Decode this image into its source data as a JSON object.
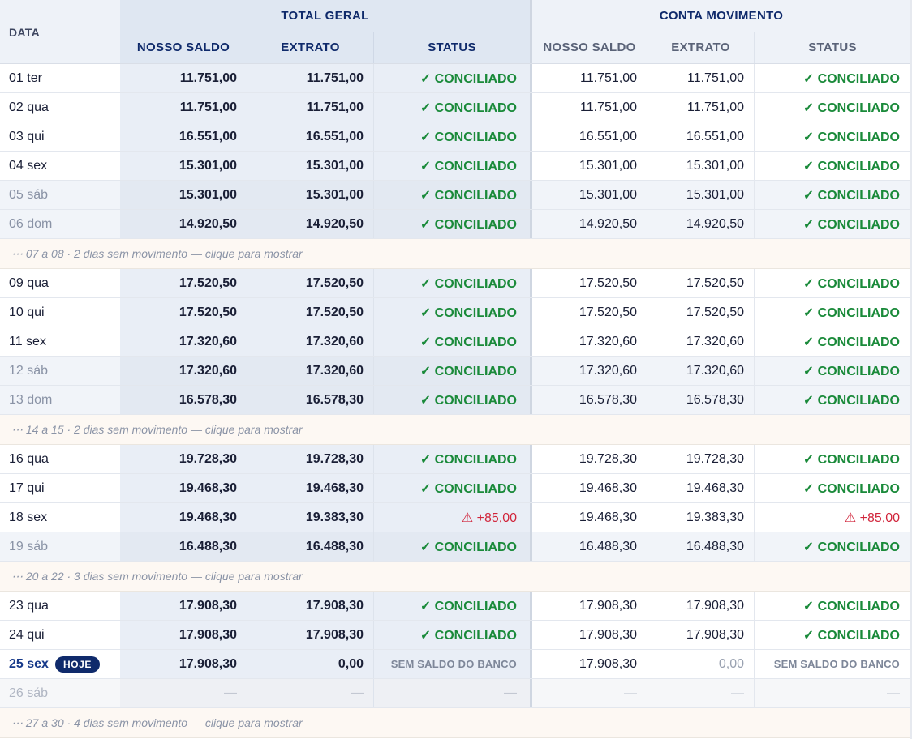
{
  "header": {
    "data_label": "DATA",
    "group_total": "TOTAL GERAL",
    "group_conta": "CONTA MOVIMENTO",
    "columns": {
      "total_nosso": "NOSSO SALDO",
      "total_extrato": "EXTRATO",
      "total_status": "STATUS",
      "conta_nosso": "NOSSO SALDO",
      "conta_extrato": "EXTRATO",
      "conta_status": "STATUS"
    }
  },
  "rows": {
    "r01": {
      "date": "01 ter",
      "t_nosso": "11.751,00",
      "t_extrato": "11.751,00",
      "t_status": "✓ CONCILIADO",
      "c_nosso": "11.751,00",
      "c_extrato": "11.751,00",
      "c_status": "✓ CONCILIADO"
    },
    "r02": {
      "date": "02 qua",
      "t_nosso": "11.751,00",
      "t_extrato": "11.751,00",
      "t_status": "✓ CONCILIADO",
      "c_nosso": "11.751,00",
      "c_extrato": "11.751,00",
      "c_status": "✓ CONCILIADO"
    },
    "r03": {
      "date": "03 qui",
      "t_nosso": "16.551,00",
      "t_extrato": "16.551,00",
      "t_status": "✓ CONCILIADO",
      "c_nosso": "16.551,00",
      "c_extrato": "16.551,00",
      "c_status": "✓ CONCILIADO"
    },
    "r04": {
      "date": "04 sex",
      "t_nosso": "15.301,00",
      "t_extrato": "15.301,00",
      "t_status": "✓ CONCILIADO",
      "c_nosso": "15.301,00",
      "c_extrato": "15.301,00",
      "c_status": "✓ CONCILIADO"
    },
    "r05": {
      "date": "05 sáb",
      "t_nosso": "15.301,00",
      "t_extrato": "15.301,00",
      "t_status": "✓ CONCILIADO",
      "c_nosso": "15.301,00",
      "c_extrato": "15.301,00",
      "c_status": "✓ CONCILIADO"
    },
    "r06": {
      "date": "06 dom",
      "t_nosso": "14.920,50",
      "t_extrato": "14.920,50",
      "t_status": "✓ CONCILIADO",
      "c_nosso": "14.920,50",
      "c_extrato": "14.920,50",
      "c_status": "✓ CONCILIADO"
    },
    "r09": {
      "date": "09 qua",
      "t_nosso": "17.520,50",
      "t_extrato": "17.520,50",
      "t_status": "✓ CONCILIADO",
      "c_nosso": "17.520,50",
      "c_extrato": "17.520,50",
      "c_status": "✓ CONCILIADO"
    },
    "r10": {
      "date": "10 qui",
      "t_nosso": "17.520,50",
      "t_extrato": "17.520,50",
      "t_status": "✓ CONCILIADO",
      "c_nosso": "17.520,50",
      "c_extrato": "17.520,50",
      "c_status": "✓ CONCILIADO"
    },
    "r11": {
      "date": "11 sex",
      "t_nosso": "17.320,60",
      "t_extrato": "17.320,60",
      "t_status": "✓ CONCILIADO",
      "c_nosso": "17.320,60",
      "c_extrato": "17.320,60",
      "c_status": "✓ CONCILIADO"
    },
    "r12": {
      "date": "12 sáb",
      "t_nosso": "17.320,60",
      "t_extrato": "17.320,60",
      "t_status": "✓ CONCILIADO",
      "c_nosso": "17.320,60",
      "c_extrato": "17.320,60",
      "c_status": "✓ CONCILIADO"
    },
    "r13": {
      "date": "13 dom",
      "t_nosso": "16.578,30",
      "t_extrato": "16.578,30",
      "t_status": "✓ CONCILIADO",
      "c_nosso": "16.578,30",
      "c_extrato": "16.578,30",
      "c_status": "✓ CONCILIADO"
    },
    "r16": {
      "date": "16 qua",
      "t_nosso": "19.728,30",
      "t_extrato": "19.728,30",
      "t_status": "✓ CONCILIADO",
      "c_nosso": "19.728,30",
      "c_extrato": "19.728,30",
      "c_status": "✓ CONCILIADO"
    },
    "r17": {
      "date": "17 qui",
      "t_nosso": "19.468,30",
      "t_extrato": "19.468,30",
      "t_status": "✓ CONCILIADO",
      "c_nosso": "19.468,30",
      "c_extrato": "19.468,30",
      "c_status": "✓ CONCILIADO"
    },
    "r18": {
      "date": "18 sex",
      "t_nosso": "19.468,30",
      "t_extrato": "19.383,30",
      "t_status": "⚠ +85,00",
      "c_nosso": "19.468,30",
      "c_extrato": "19.383,30",
      "c_status": "⚠ +85,00"
    },
    "r19": {
      "date": "19 sáb",
      "t_nosso": "16.488,30",
      "t_extrato": "16.488,30",
      "t_status": "✓ CONCILIADO",
      "c_nosso": "16.488,30",
      "c_extrato": "16.488,30",
      "c_status": "✓ CONCILIADO"
    },
    "r23": {
      "date": "23 qua",
      "t_nosso": "17.908,30",
      "t_extrato": "17.908,30",
      "t_status": "✓ CONCILIADO",
      "c_nosso": "17.908,30",
      "c_extrato": "17.908,30",
      "c_status": "✓ CONCILIADO"
    },
    "r24": {
      "date": "24 qui",
      "t_nosso": "17.908,30",
      "t_extrato": "17.908,30",
      "t_status": "✓ CONCILIADO",
      "c_nosso": "17.908,30",
      "c_extrato": "17.908,30",
      "c_status": "✓ CONCILIADO"
    },
    "r25": {
      "date": "25 sex",
      "today_badge": "HOJE",
      "t_nosso": "17.908,30",
      "t_extrato": "0,00",
      "t_status": "SEM SALDO DO BANCO",
      "c_nosso": "17.908,30",
      "c_extrato": "0,00",
      "c_status": "SEM SALDO DO BANCO"
    },
    "r26": {
      "date": "26 sáb",
      "t_nosso": "—",
      "t_extrato": "—",
      "t_status": "—",
      "c_nosso": "—",
      "c_extrato": "—",
      "c_status": "—"
    }
  },
  "gaps": {
    "g1": "⋯ 07 a 08 · 2 dias sem movimento — clique para mostrar",
    "g2": "⋯ 14 a 15 · 2 dias sem movimento — clique para mostrar",
    "g3": "⋯ 20 a 22 · 3 dias sem movimento — clique para mostrar",
    "g4": "⋯ 27 a 30 · 4 dias sem movimento — clique para mostrar"
  },
  "colors": {
    "conciliado": "#1a8a3a",
    "divergente": "#d1253b",
    "header_total_bg": "#dfe7f2",
    "header_conta_bg": "#eef2f8",
    "badge_bg": "#0f2a6b"
  }
}
